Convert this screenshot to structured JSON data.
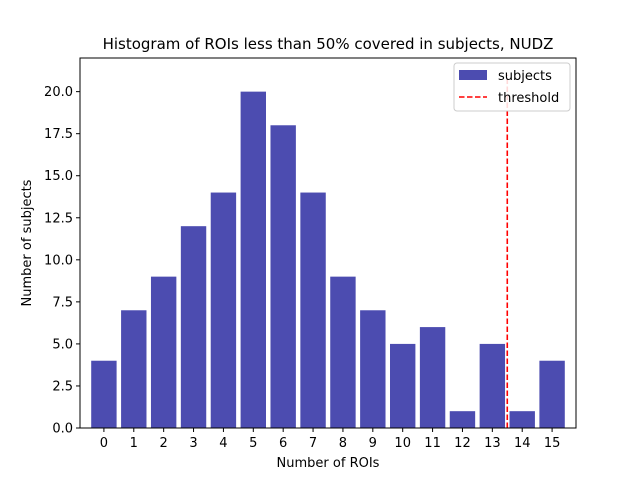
{
  "chart_data": {
    "type": "bar",
    "title": "Histogram of ROIs less than 50% covered in subjects, NUDZ",
    "xlabel": "Number of ROIs",
    "ylabel": "Number of subjects",
    "categories": [
      "0",
      "1",
      "2",
      "3",
      "4",
      "5",
      "6",
      "7",
      "8",
      "9",
      "10",
      "11",
      "12",
      "13",
      "14",
      "15"
    ],
    "x": [
      0,
      1,
      2,
      3,
      4,
      5,
      6,
      7,
      8,
      9,
      10,
      11,
      12,
      13,
      14,
      15
    ],
    "series": [
      {
        "name": "subjects",
        "values": [
          4,
          7,
          9,
          12,
          14,
          20,
          18,
          14,
          9,
          7,
          5,
          6,
          1,
          5,
          1,
          4
        ]
      }
    ],
    "threshold": {
      "name": "threshold",
      "x": 13.5
    },
    "xlim": [
      -0.8,
      15.8
    ],
    "ylim": [
      0,
      22
    ],
    "yticks": [
      0,
      2.5,
      5,
      7.5,
      10,
      12.5,
      15,
      17.5,
      20
    ],
    "ytick_labels": [
      "0.0",
      "2.5",
      "5.0",
      "7.5",
      "10.0",
      "12.5",
      "15.0",
      "17.5",
      "20.0"
    ],
    "grid": false,
    "legend": "top-right",
    "colors": {
      "bar": "#4c4cb0",
      "threshold": "#ff0000"
    }
  }
}
